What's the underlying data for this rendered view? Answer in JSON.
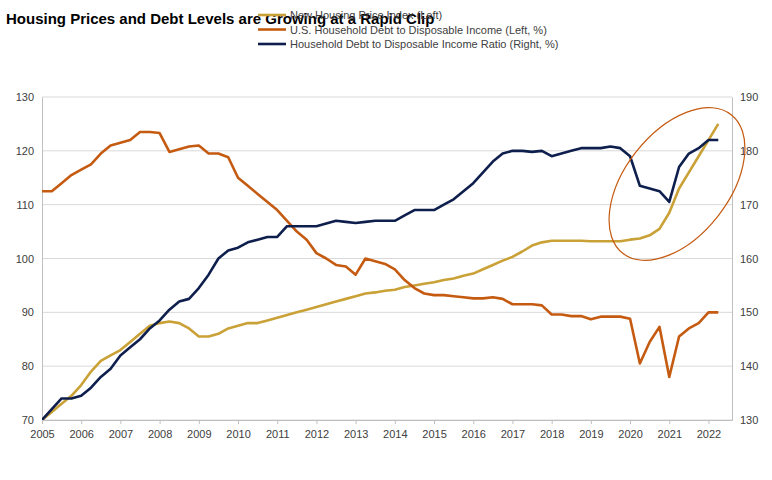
{
  "chart_data": {
    "type": "line",
    "title": "Housing Prices and Debt Levels are Growing at a Rapid Clip",
    "x": [
      2005,
      2005.25,
      2005.5,
      2005.75,
      2006,
      2006.25,
      2006.5,
      2006.75,
      2007,
      2007.25,
      2007.5,
      2007.75,
      2008,
      2008.25,
      2008.5,
      2008.75,
      2009,
      2009.25,
      2009.5,
      2009.75,
      2010,
      2010.25,
      2010.5,
      2010.75,
      2011,
      2011.25,
      2011.5,
      2011.75,
      2012,
      2012.25,
      2012.5,
      2012.75,
      2013,
      2013.25,
      2013.5,
      2013.75,
      2014,
      2014.25,
      2014.5,
      2014.75,
      2015,
      2015.25,
      2015.5,
      2015.75,
      2016,
      2016.25,
      2016.5,
      2016.75,
      2017,
      2017.25,
      2017.5,
      2017.75,
      2018,
      2018.25,
      2018.5,
      2018.75,
      2019,
      2019.25,
      2019.5,
      2019.75,
      2020,
      2020.25,
      2020.5,
      2020.75,
      2021,
      2021.25,
      2021.5,
      2021.75,
      2022,
      2022.25
    ],
    "series": [
      {
        "name": "New Housing Price Index (Left)",
        "color": "#c9a136",
        "axis": "y",
        "values": [
          70,
          71.5,
          73,
          74.5,
          76.5,
          79,
          81,
          82,
          83,
          84.5,
          86,
          87.5,
          88,
          88.3,
          88,
          87,
          85.5,
          85.5,
          86,
          87,
          87.5,
          88,
          88,
          88.5,
          89,
          89.5,
          90,
          90.5,
          91,
          91.5,
          92,
          92.5,
          93,
          93.5,
          93.7,
          94,
          94.2,
          94.7,
          95,
          95.3,
          95.6,
          96,
          96.3,
          96.8,
          97.2,
          98,
          98.8,
          99.6,
          100.3,
          101.3,
          102.4,
          103,
          103.3,
          103.3,
          103.3,
          103.3,
          103.2,
          103.2,
          103.2,
          103.2,
          103.5,
          103.7,
          104.3,
          105.5,
          108.5,
          113,
          116,
          119,
          122,
          125
        ]
      },
      {
        "name": "U.S. Household Debt to Disposable Income (Left, %)",
        "color": "#c55a11",
        "axis": "y",
        "values": [
          112.5,
          112.5,
          114,
          115.5,
          116.5,
          117.5,
          119.5,
          121,
          121.5,
          122,
          123.5,
          123.5,
          123.3,
          119.8,
          120.3,
          120.8,
          121,
          119.5,
          119.5,
          118.8,
          115,
          113.5,
          112,
          110.5,
          109,
          107,
          105,
          103.5,
          101,
          100,
          98.8,
          98.5,
          97,
          100,
          99.5,
          99,
          98,
          96,
          94.5,
          93.5,
          93.2,
          93.2,
          93,
          92.8,
          92.6,
          92.6,
          92.8,
          92.5,
          91.5,
          91.5,
          91.5,
          91.3,
          89.6,
          89.6,
          89.3,
          89.3,
          88.7,
          89.2,
          89.2,
          89.2,
          88.8,
          80.5,
          84.5,
          87.3,
          78,
          85.5,
          87,
          88,
          90,
          90
        ]
      },
      {
        "name": "Household Debt to Disposable Income Ratio (Right, %)",
        "color": "#0e1f4d",
        "axis": "y2",
        "values": [
          130,
          132,
          134,
          134,
          134.5,
          136,
          138,
          139.5,
          142,
          143.5,
          145,
          147,
          148.5,
          150.5,
          152,
          152.5,
          154.5,
          157,
          160,
          161.5,
          162,
          163,
          163.5,
          164,
          164,
          166,
          166,
          166,
          166,
          166.5,
          167,
          166.8,
          166.6,
          166.8,
          167,
          167,
          167,
          168,
          169,
          169,
          169,
          170,
          171,
          172.5,
          174,
          176,
          178,
          179.5,
          180,
          180,
          179.8,
          180,
          179,
          179.5,
          180,
          180.5,
          180.5,
          180.5,
          180.8,
          180.5,
          179,
          173.5,
          173,
          172.5,
          170.5,
          177,
          179.5,
          180.5,
          182,
          182
        ]
      }
    ],
    "xlim": [
      2005,
      2022.6
    ],
    "xticks": [
      2005,
      2006,
      2007,
      2008,
      2009,
      2010,
      2011,
      2012,
      2013,
      2014,
      2015,
      2016,
      2017,
      2018,
      2019,
      2020,
      2021,
      2022
    ],
    "ylim": [
      70,
      130
    ],
    "yticks": [
      70,
      80,
      90,
      100,
      110,
      120,
      130
    ],
    "y2lim": [
      130,
      190
    ],
    "y2ticks": [
      130,
      140,
      150,
      160,
      170,
      180,
      190
    ],
    "grid": true,
    "legend": "top"
  }
}
